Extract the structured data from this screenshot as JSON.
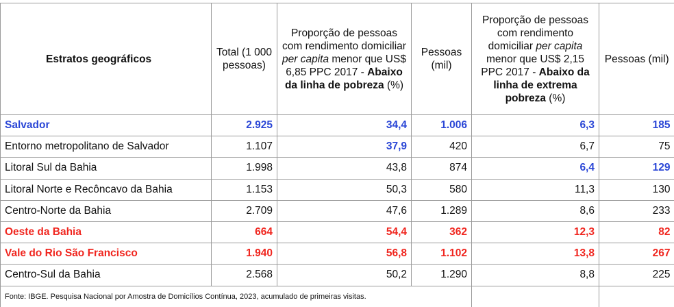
{
  "header": {
    "col0": "Estratos geográficos",
    "col1": "Total (1 000 pessoas)",
    "col2_line1": "Proporção de pessoas com rendimento domiciliar ",
    "col2_italic": "per capita",
    "col2_line2": " menor que US$ 6,85 PPC 2017 - ",
    "col2_bold": "Abaixo da linha de pobreza",
    "col2_tail": " (%)",
    "col3": "Pessoas (mil)",
    "col4_line1": "Proporção de pessoas com rendimento domiciliar ",
    "col4_italic": "per capita",
    "col4_line2": " menor que US$ 2,15 PPC 2017 - ",
    "col4_bold": "Abaixo da linha de extrema pobreza",
    "col4_tail": " (%)",
    "col5": "Pessoas (mil)"
  },
  "rows": [
    {
      "name": "Salvador",
      "total": "2.925",
      "pob": "34,4",
      "pes1": "1.006",
      "ext": "6,3",
      "pes2": "185"
    },
    {
      "name": "Entorno metropolitano de Salvador",
      "total": "1.107",
      "pob": "37,9",
      "pes1": "420",
      "ext": "6,7",
      "pes2": "75"
    },
    {
      "name": "Litoral Sul da Bahia",
      "total": "1.998",
      "pob": "43,8",
      "pes1": "874",
      "ext": "6,4",
      "pes2": "129"
    },
    {
      "name": "Litoral Norte e Recôncavo da Bahia",
      "total": "1.153",
      "pob": "50,3",
      "pes1": "580",
      "ext": "11,3",
      "pes2": "130"
    },
    {
      "name": "Centro-Norte da Bahia",
      "total": "2.709",
      "pob": "47,6",
      "pes1": "1.289",
      "ext": "8,6",
      "pes2": "233"
    },
    {
      "name": "Oeste da Bahia",
      "total": "664",
      "pob": "54,4",
      "pes1": "362",
      "ext": "12,3",
      "pes2": "82"
    },
    {
      "name": "Vale do Rio São Francisco",
      "total": "1.940",
      "pob": "56,8",
      "pes1": "1.102",
      "ext": "13,8",
      "pes2": "267"
    },
    {
      "name": "Centro-Sul da Bahia",
      "total": "2.568",
      "pob": "50,2",
      "pes1": "1.290",
      "ext": "8,8",
      "pes2": "225"
    }
  ],
  "footer": "Fonte: IBGE. Pesquisa Nacional por Amostra de Domicílios Contínua, 2023, acumulado de primeiras visitas.",
  "colors": {
    "highlight_low": "#2a46d6",
    "highlight_high": "#f0261f"
  }
}
